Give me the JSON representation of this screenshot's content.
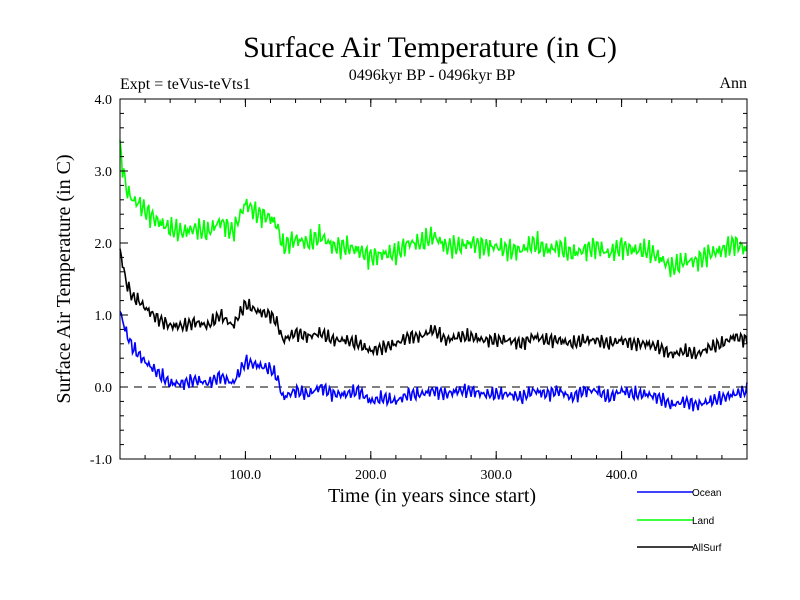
{
  "chart_data": {
    "type": "line",
    "title": "Surface Air Temperature (in C)",
    "subtitle_left": "Expt = teVus-teVts1",
    "subtitle_center": "0496kyr BP - 0496kyr BP",
    "subtitle_right": "Ann",
    "xlabel": "Time (in years since start)",
    "ylabel": "Surface Air Temperature (in C)",
    "xlim": [
      0,
      500
    ],
    "ylim": [
      -1.0,
      4.0
    ],
    "xticks": [
      100,
      200,
      300,
      400
    ],
    "xtick_labels": [
      "100.0",
      "200.0",
      "300.0",
      "400.0"
    ],
    "yticks": [
      -1.0,
      0.0,
      1.0,
      2.0,
      3.0,
      4.0
    ],
    "ytick_labels": [
      "-1.0",
      "0.0",
      "1.0",
      "2.0",
      "3.0",
      "4.0"
    ],
    "reference_line": {
      "y": 0.0,
      "style": "dashed"
    },
    "grid": false,
    "legend_position": "bottom-right",
    "series": [
      {
        "name": "Ocean",
        "color": "#0000ff",
        "x": [
          0,
          5,
          10,
          15,
          20,
          30,
          40,
          50,
          60,
          70,
          80,
          90,
          100,
          110,
          120,
          125,
          130,
          140,
          150,
          160,
          170,
          180,
          190,
          200,
          210,
          220,
          230,
          240,
          250,
          260,
          270,
          280,
          290,
          300,
          310,
          320,
          330,
          340,
          350,
          360,
          370,
          380,
          390,
          400,
          410,
          420,
          430,
          440,
          450,
          460,
          470,
          480,
          490,
          500
        ],
        "y": [
          1.05,
          0.75,
          0.55,
          0.45,
          0.35,
          0.2,
          0.05,
          0.05,
          0.1,
          0.05,
          0.15,
          0.05,
          0.35,
          0.3,
          0.25,
          0.15,
          -0.15,
          -0.05,
          -0.1,
          0.0,
          -0.1,
          -0.1,
          -0.05,
          -0.2,
          -0.15,
          -0.2,
          -0.1,
          -0.1,
          -0.05,
          -0.1,
          -0.05,
          -0.05,
          -0.1,
          -0.1,
          -0.1,
          -0.15,
          -0.05,
          -0.1,
          -0.05,
          -0.15,
          -0.05,
          -0.05,
          -0.15,
          -0.05,
          -0.1,
          -0.1,
          -0.15,
          -0.25,
          -0.2,
          -0.25,
          -0.2,
          -0.15,
          -0.1,
          -0.05
        ]
      },
      {
        "name": "Land",
        "color": "#00ff00",
        "x": [
          0,
          5,
          10,
          15,
          20,
          30,
          40,
          50,
          60,
          70,
          80,
          90,
          100,
          110,
          120,
          125,
          130,
          140,
          150,
          160,
          170,
          180,
          190,
          200,
          210,
          220,
          230,
          240,
          250,
          260,
          270,
          280,
          290,
          300,
          310,
          320,
          330,
          340,
          350,
          360,
          370,
          380,
          390,
          400,
          410,
          420,
          430,
          440,
          450,
          460,
          470,
          480,
          490,
          500
        ],
        "y": [
          3.3,
          2.75,
          2.6,
          2.55,
          2.45,
          2.3,
          2.2,
          2.15,
          2.2,
          2.15,
          2.3,
          2.15,
          2.55,
          2.4,
          2.35,
          2.25,
          1.95,
          2.05,
          2.0,
          2.1,
          1.95,
          1.95,
          1.9,
          1.8,
          1.85,
          1.85,
          2.0,
          2.0,
          2.1,
          1.95,
          1.95,
          2.0,
          1.95,
          1.95,
          1.9,
          1.9,
          2.0,
          1.9,
          1.95,
          1.85,
          1.9,
          1.95,
          1.85,
          1.95,
          1.9,
          1.9,
          1.8,
          1.65,
          1.75,
          1.75,
          1.85,
          1.9,
          2.0,
          1.9
        ]
      },
      {
        "name": "AllSurf",
        "color": "#000000",
        "x": [
          0,
          5,
          10,
          15,
          20,
          30,
          40,
          50,
          60,
          70,
          80,
          90,
          100,
          110,
          120,
          125,
          130,
          140,
          150,
          160,
          170,
          180,
          190,
          200,
          210,
          220,
          230,
          240,
          250,
          260,
          270,
          280,
          290,
          300,
          310,
          320,
          330,
          340,
          350,
          360,
          370,
          380,
          390,
          400,
          410,
          420,
          430,
          440,
          450,
          460,
          470,
          480,
          490,
          500
        ],
        "y": [
          1.9,
          1.45,
          1.25,
          1.2,
          1.1,
          0.95,
          0.85,
          0.85,
          0.9,
          0.85,
          1.0,
          0.85,
          1.15,
          1.05,
          1.0,
          0.9,
          0.65,
          0.75,
          0.7,
          0.75,
          0.65,
          0.65,
          0.6,
          0.5,
          0.55,
          0.6,
          0.7,
          0.7,
          0.8,
          0.65,
          0.7,
          0.7,
          0.65,
          0.65,
          0.65,
          0.6,
          0.7,
          0.65,
          0.65,
          0.6,
          0.65,
          0.65,
          0.6,
          0.65,
          0.6,
          0.6,
          0.55,
          0.45,
          0.5,
          0.45,
          0.55,
          0.6,
          0.7,
          0.65
        ]
      }
    ]
  }
}
